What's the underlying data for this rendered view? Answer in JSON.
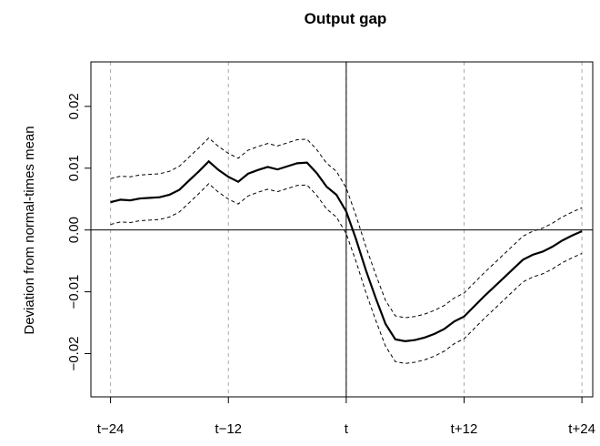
{
  "chart_data": {
    "type": "line",
    "title": "Output gap",
    "y_label": "Deviation from normal-times mean",
    "x": [
      -24,
      -23,
      -22,
      -21,
      -20,
      -19,
      -18,
      -17,
      -16,
      -15,
      -14,
      -13,
      -12,
      -11,
      -10,
      -9,
      -8,
      -7,
      -6,
      -5,
      -4,
      -3,
      -2,
      -1,
      0,
      1,
      2,
      3,
      4,
      5,
      6,
      7,
      8,
      9,
      10,
      11,
      12,
      13,
      14,
      15,
      16,
      17,
      18,
      19,
      20,
      21,
      22,
      23,
      24
    ],
    "series": [
      {
        "color": "#000000",
        "style": "solid",
        "values": [
          0.0045,
          0.0049,
          0.0048,
          0.0051,
          0.0052,
          0.0053,
          0.0057,
          0.0065,
          0.008,
          0.0095,
          0.0111,
          0.0097,
          0.0086,
          0.0078,
          0.0091,
          0.0097,
          0.0102,
          0.0098,
          0.0103,
          0.0108,
          0.0109,
          0.0092,
          0.007,
          0.0057,
          0.003,
          -0.0015,
          -0.0065,
          -0.011,
          -0.0152,
          -0.0177,
          -0.018,
          -0.0178,
          -0.0174,
          -0.0168,
          -0.016,
          -0.0148,
          -0.014,
          -0.0124,
          -0.0108,
          -0.0093,
          -0.0078,
          -0.0063,
          -0.0048,
          -0.004,
          -0.0035,
          -0.0027,
          -0.0017,
          -0.0009,
          -0.0002
        ]
      },
      {
        "color": "#000000",
        "style": "dashed",
        "values": [
          0.0083,
          0.0087,
          0.0086,
          0.0089,
          0.009,
          0.0091,
          0.0095,
          0.0103,
          0.0118,
          0.0133,
          0.0149,
          0.0135,
          0.0124,
          0.0116,
          0.0129,
          0.0135,
          0.014,
          0.0136,
          0.0141,
          0.0146,
          0.0147,
          0.013,
          0.0108,
          0.0095,
          0.0068,
          0.0023,
          -0.0027,
          -0.0072,
          -0.0114,
          -0.0139,
          -0.0142,
          -0.014,
          -0.0136,
          -0.013,
          -0.0122,
          -0.011,
          -0.0102,
          -0.0086,
          -0.007,
          -0.0055,
          -0.004,
          -0.0025,
          -0.001,
          -0.0002,
          0.0003,
          0.0011,
          0.0021,
          0.0029,
          0.0036
        ]
      },
      {
        "color": "#000000",
        "style": "dashed",
        "values": [
          0.0009,
          0.0013,
          0.0012,
          0.0015,
          0.0016,
          0.0017,
          0.0021,
          0.0029,
          0.0044,
          0.0059,
          0.0075,
          0.0061,
          0.005,
          0.0042,
          0.0055,
          0.0061,
          0.0066,
          0.0062,
          0.0067,
          0.0072,
          0.0073,
          0.0056,
          0.0034,
          0.0021,
          -0.0006,
          -0.0051,
          -0.0101,
          -0.0146,
          -0.0188,
          -0.0213,
          -0.0216,
          -0.0214,
          -0.021,
          -0.0204,
          -0.0196,
          -0.0184,
          -0.0176,
          -0.016,
          -0.0144,
          -0.0129,
          -0.0114,
          -0.0099,
          -0.0084,
          -0.0076,
          -0.0071,
          -0.0063,
          -0.0053,
          -0.0045,
          -0.0038
        ]
      }
    ],
    "xlim": [
      -26,
      25.1
    ],
    "ylim": [
      -0.027,
      0.0272
    ],
    "xticks": [
      {
        "value": -24,
        "label": "t−24"
      },
      {
        "value": -12,
        "label": "t−12"
      },
      {
        "value": 0,
        "label": "t"
      },
      {
        "value": 12,
        "label": "t+12"
      },
      {
        "value": 24,
        "label": "t+24"
      }
    ],
    "yticks": [
      {
        "value": -0.02,
        "label": "−0.02"
      },
      {
        "value": -0.01,
        "label": "−0.01"
      },
      {
        "value": 0,
        "label": "0.00"
      },
      0.01,
      0.02
    ],
    "hlines": [
      0
    ],
    "vlines": [
      0
    ],
    "grid": true,
    "grid_color": "#aaaaaa"
  }
}
